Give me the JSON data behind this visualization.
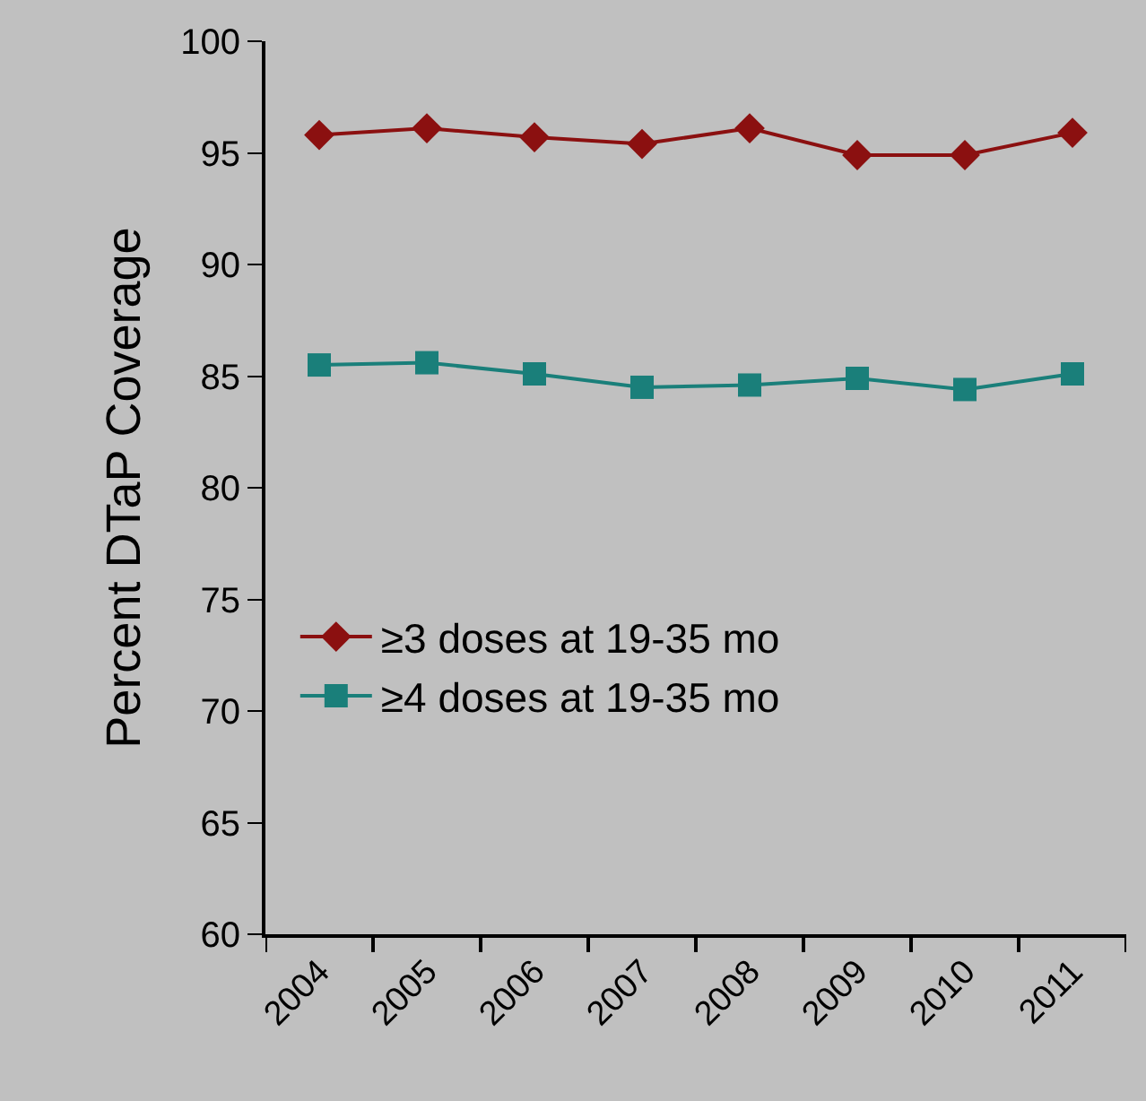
{
  "chart_data": {
    "type": "line",
    "ylabel": "Percent DTaP Coverage",
    "categories": [
      "2004",
      "2005",
      "2006",
      "2007",
      "2008",
      "2009",
      "2010",
      "2011"
    ],
    "series": [
      {
        "name": "≥3 doses at 19-35 mo",
        "color": "#8b1010",
        "marker": "diamond",
        "values": [
          95.8,
          96.1,
          95.7,
          95.4,
          96.1,
          94.9,
          94.9,
          95.9
        ]
      },
      {
        "name": "≥4 doses at 19-35 mo",
        "color": "#1a7f7a",
        "marker": "square",
        "values": [
          85.5,
          85.6,
          85.1,
          84.5,
          84.6,
          84.9,
          84.4,
          85.1
        ]
      }
    ],
    "ylim": [
      60,
      100
    ],
    "yticks": [
      60,
      65,
      70,
      75,
      80,
      85,
      90,
      95,
      100
    ],
    "grid": false,
    "legend": "bottom left",
    "line_style": "solid"
  }
}
